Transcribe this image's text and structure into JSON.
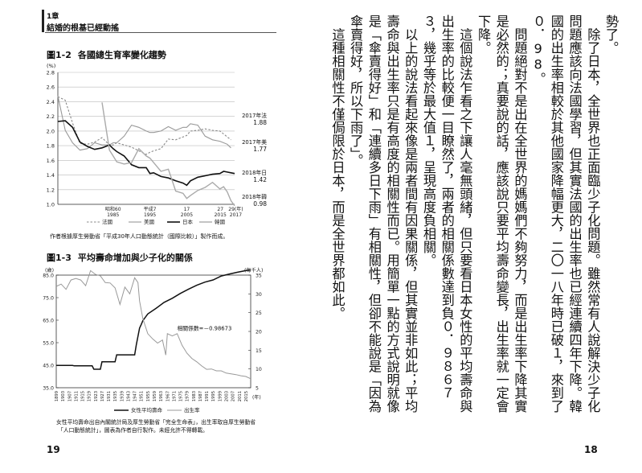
{
  "header": {
    "chapter": "1章",
    "title": "結婚的根基已經動搖"
  },
  "fig12": {
    "label": "圖1-2",
    "title": "各國總生育率變化趨勢",
    "unit": "(%)",
    "annotations": [
      {
        "line1": "2017年法",
        "line2": "1.88"
      },
      {
        "line1": "2017年美",
        "line2": "1.77"
      },
      {
        "line1": "2018年日",
        "line2": "1.42"
      },
      {
        "line1": "2018年韓",
        "line2": "0.98"
      }
    ],
    "source": "作者根據厚生勞動省「平成30年人口動態統計（國際比較）」製作而成。"
  },
  "fig13": {
    "label": "圖1-3",
    "title": "平均壽命增加與少子化的關係",
    "unit_left": "(歲)",
    "unit_right": "(每千人)",
    "corr": "相關係數=－0.98673",
    "xunit": "(年)",
    "note1": "女性平均壽命出自內閣統計局及厚生勞動省「完全生命表」，出生率取自厚生勞動省",
    "note2": "「人口動態統計」，圖表為作者自行製作。未經允許不得轉載。"
  },
  "chart_data": [
    {
      "type": "line",
      "title": "各國總生育率變化趨勢",
      "ylabel": "(%)",
      "ylim": [
        1.0,
        2.8
      ],
      "yticks": [
        "2.8",
        "2.6",
        "2.4",
        "2.2",
        "2.0",
        "1.8",
        "1.6",
        "1.4",
        "1.2",
        "1.0"
      ],
      "xticks": [
        {
          "top": "昭和60",
          "bottom": "1985"
        },
        {
          "top": "平成7",
          "bottom": "1995"
        },
        {
          "top": "17",
          "bottom": "2005"
        },
        {
          "top": "27",
          "bottom": "2015"
        },
        {
          "top": "29(年)",
          "bottom": "2017"
        }
      ],
      "x": [
        1970,
        1972,
        1974,
        1976,
        1978,
        1980,
        1982,
        1984,
        1985,
        1986,
        1988,
        1990,
        1992,
        1994,
        1995,
        1996,
        1998,
        2000,
        2002,
        2004,
        2005,
        2006,
        2008,
        2010,
        2012,
        2014,
        2015,
        2016,
        2017,
        2018
      ],
      "series": [
        {
          "name": "法國",
          "values": [
            2.47,
            2.42,
            2.11,
            1.83,
            1.82,
            1.85,
            1.91,
            1.81,
            1.81,
            1.84,
            1.81,
            1.78,
            1.73,
            1.68,
            1.71,
            1.73,
            1.76,
            1.89,
            1.88,
            1.92,
            1.94,
            2.0,
            2.01,
            2.03,
            2.01,
            2.0,
            1.96,
            1.92,
            1.88,
            null
          ]
        },
        {
          "name": "美國",
          "values": [
            2.48,
            2.01,
            1.84,
            1.74,
            1.76,
            1.84,
            1.81,
            1.81,
            1.84,
            1.84,
            1.93,
            2.08,
            2.05,
            2.0,
            1.98,
            1.98,
            2.0,
            2.06,
            2.01,
            2.05,
            2.05,
            2.1,
            2.08,
            1.93,
            1.88,
            1.86,
            1.84,
            1.82,
            1.77,
            null
          ]
        },
        {
          "name": "日本",
          "values": [
            2.13,
            2.14,
            2.05,
            1.85,
            1.79,
            1.75,
            1.77,
            1.81,
            1.76,
            1.72,
            1.66,
            1.54,
            1.5,
            1.5,
            1.42,
            1.43,
            1.38,
            1.36,
            1.32,
            1.29,
            1.26,
            1.32,
            1.37,
            1.39,
            1.41,
            1.42,
            1.45,
            1.44,
            1.43,
            1.42
          ]
        },
        {
          "name": "韓國",
          "values": [
            null,
            null,
            null,
            null,
            null,
            null,
            2.39,
            1.74,
            1.66,
            1.58,
            1.55,
            1.57,
            1.76,
            1.66,
            1.63,
            1.57,
            1.45,
            1.48,
            1.18,
            1.15,
            1.08,
            1.12,
            1.19,
            1.23,
            1.3,
            1.21,
            1.24,
            1.17,
            1.05,
            0.98
          ]
        }
      ]
    },
    {
      "type": "line",
      "title": "平均壽命增加與少子化的關係",
      "ylabel_left": "(歲)",
      "ylabel_right": "(每千人)",
      "ylim_left": [
        35.0,
        85.0
      ],
      "ylim_right": [
        5,
        35
      ],
      "yticks_left": [
        "85.0",
        "75.0",
        "65.0",
        "55.0",
        "45.0",
        "35.0"
      ],
      "yticks_right": [
        "35",
        "30",
        "25",
        "20",
        "15",
        "10",
        "5"
      ],
      "xticks": [
        "1899",
        "1903",
        "1907",
        "1911",
        "1915",
        "1919",
        "1923",
        "1927",
        "1931",
        "1935",
        "1939",
        "1943",
        "1947",
        "1951",
        "1955",
        "1959",
        "1963",
        "1967",
        "1971",
        "1975",
        "1979",
        "1983",
        "1987",
        "1991",
        "1995",
        "1999",
        "2003",
        "2007",
        "2011",
        "2015"
      ],
      "annotation": "相關係數=－0.98673",
      "series": [
        {
          "name": "女性平均壽命",
          "axis": "left",
          "x": [
            1899,
            1909,
            1910,
            1921,
            1922,
            1926,
            1927,
            1935,
            1936,
            1947,
            1948,
            1950,
            1951,
            1952,
            1955,
            1960,
            1965,
            1970,
            1975,
            1980,
            1985,
            1990,
            1995,
            2000,
            2005,
            2010,
            2015,
            2018
          ],
          "values": [
            44.9,
            44.9,
            44.7,
            44.7,
            43.2,
            43.2,
            46.5,
            46.5,
            49.6,
            49.6,
            53.96,
            61.5,
            63.0,
            64.8,
            67.75,
            70.2,
            72.9,
            74.7,
            76.9,
            78.8,
            80.5,
            81.9,
            82.85,
            84.6,
            85.5,
            86.3,
            87.0,
            87.3
          ]
        },
        {
          "name": "出生率",
          "axis": "right",
          "x": [
            1899,
            1902,
            1905,
            1908,
            1911,
            1914,
            1917,
            1920,
            1923,
            1926,
            1929,
            1932,
            1935,
            1938,
            1941,
            1944,
            1947,
            1949,
            1950,
            1952,
            1955,
            1958,
            1961,
            1964,
            1966,
            1967,
            1970,
            1973,
            1976,
            1979,
            1982,
            1985,
            1988,
            1991,
            1994,
            1997,
            2000,
            2003,
            2006,
            2009,
            2012,
            2015,
            2018
          ],
          "values": [
            32.0,
            32.6,
            31.2,
            33.7,
            34.1,
            33.7,
            32.2,
            36.2,
            35.2,
            34.8,
            33.0,
            32.9,
            31.6,
            27.2,
            31.8,
            30.0,
            34.3,
            33.0,
            28.1,
            23.4,
            19.4,
            18.0,
            16.9,
            17.7,
            13.7,
            19.4,
            18.8,
            19.4,
            16.3,
            14.2,
            12.8,
            11.9,
            10.8,
            9.9,
            10.0,
            9.5,
            9.5,
            8.9,
            8.7,
            8.5,
            8.2,
            8.0,
            7.4
          ]
        }
      ]
    }
  ],
  "page_left": "19",
  "page_right": "18",
  "body": {
    "paragraphs": [
      "勢了。",
      "　除了日本，全世界也正面臨少子化問題。雖然常有人說解決少子化問題應該向法國學習，但其實法國的出生率也已經連續四年下降。韓國的出生率相較於其他國家降幅更大，二〇一八年時已破１，來到了０．98。",
      "　問題絕對不是出在全世界的媽媽們不夠努力，而是出生率下降其實是必然的；真要說的話，應該說只要平均壽命變長，出生率就一定會下降。",
      "　這個說法乍看之下讓人毫無頭緒，但只要看日本女性的平均壽命與出生率的比較便一目瞭然了，兩者的相關係數達到負０．９８６７３，幾乎等於最大值１，呈現高度負相關。",
      "　以上的說法看起來像是兩者間有因果關係，但其實並非如此；平均壽命與出生率只是有高度的相關性而已。用簡單一點的方式說明就像是「傘賣得好」和「連續多日下雨」有相關性，但卻不能說是「因為傘賣得好，所以下雨了」。",
      "　這種相關性不僅侷限於日本，而是全世界都如此。"
    ]
  }
}
